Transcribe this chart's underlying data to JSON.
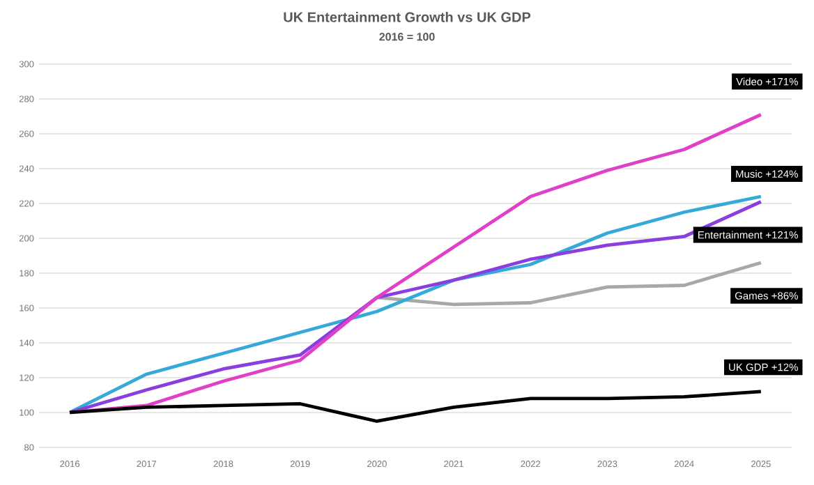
{
  "chart_data": {
    "type": "line",
    "title": "UK Entertainment Growth vs UK GDP",
    "subtitle": "2016 = 100",
    "categories": [
      "2016",
      "2017",
      "2018",
      "2019",
      "2020",
      "2021",
      "2022",
      "2023",
      "2024",
      "2025"
    ],
    "series": [
      {
        "color": "#a8a8a8",
        "values": [
          null,
          null,
          null,
          null,
          166,
          162,
          163,
          172,
          173,
          186
        ]
      },
      {
        "color": "#35aad8",
        "values": [
          100,
          122,
          134,
          146,
          158,
          176,
          185,
          203,
          215,
          224
        ]
      },
      {
        "color": "#8a3ee0",
        "values": [
          100,
          113,
          125,
          133,
          166,
          176,
          188,
          196,
          201,
          221
        ]
      },
      {
        "color": "#e040c8",
        "values": [
          100,
          104,
          118,
          130,
          166,
          195,
          224,
          239,
          251,
          271
        ]
      },
      {
        "color": "#000000",
        "values": [
          100,
          103,
          104,
          105,
          95,
          103,
          108,
          108,
          109,
          112
        ]
      }
    ],
    "ylim": [
      80,
      300
    ],
    "yticks": [
      80,
      100,
      120,
      140,
      160,
      180,
      200,
      220,
      240,
      260,
      280,
      300
    ],
    "grid": "y",
    "marker": "none",
    "line_style": "solid",
    "annotations": [
      {
        "text": "Video +171%",
        "x": "2025",
        "y": 271
      },
      {
        "text": "Music +124%",
        "x": "2025",
        "y": 224
      },
      {
        "text": "Entertainment +121%",
        "x": "2025",
        "y": 221
      },
      {
        "text": "Games +86%",
        "x": "2025",
        "y": 186
      },
      {
        "text": "UK GDP +12%",
        "x": "2025",
        "y": 112
      }
    ]
  }
}
